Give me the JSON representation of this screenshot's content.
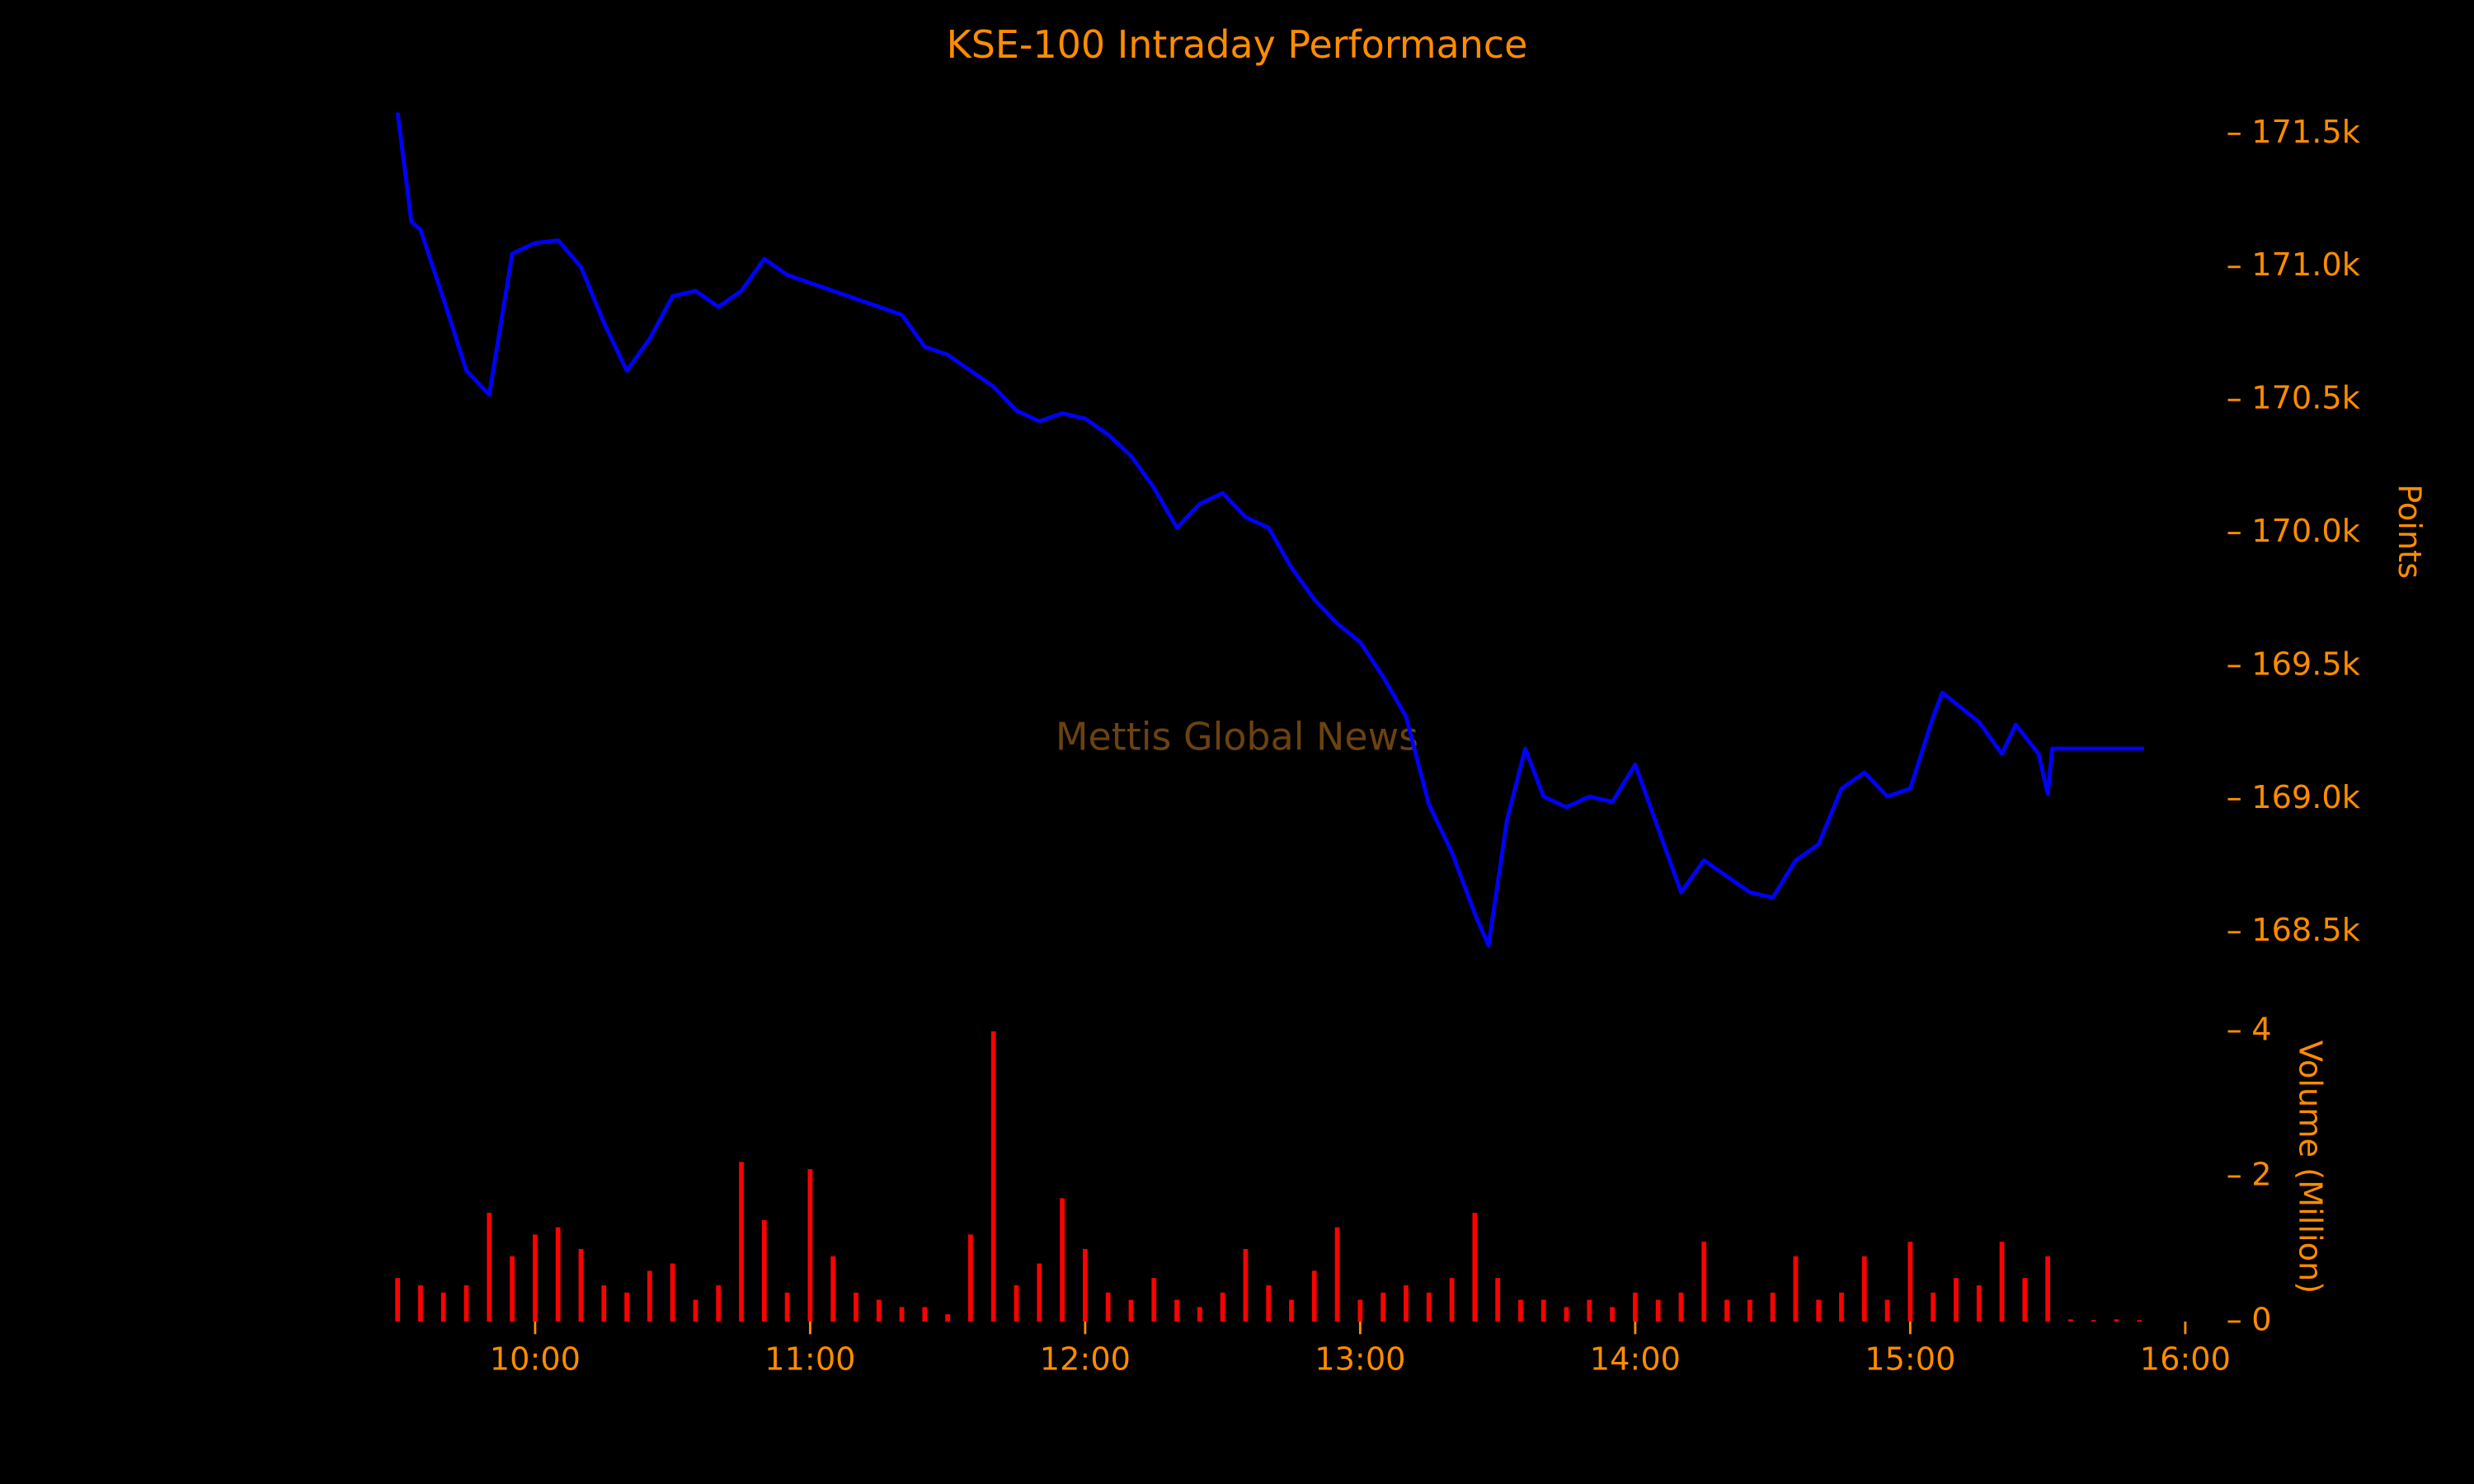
{
  "chart_data": [
    {
      "type": "line",
      "title": "KSE-100 Intraday Performance",
      "annotation": "Mettis Global News",
      "y_label": "Points",
      "color": "#0000ff",
      "x": [
        "09:30",
        "09:33",
        "09:35",
        "09:40",
        "09:45",
        "09:50",
        "09:55",
        "10:00",
        "10:05",
        "10:10",
        "10:15",
        "10:20",
        "10:25",
        "10:30",
        "10:35",
        "10:40",
        "10:45",
        "10:50",
        "10:55",
        "11:00",
        "11:05",
        "11:10",
        "11:15",
        "11:20",
        "11:25",
        "11:30",
        "11:35",
        "11:40",
        "11:45",
        "11:50",
        "11:55",
        "12:00",
        "12:05",
        "12:10",
        "12:15",
        "12:20",
        "12:25",
        "12:30",
        "12:35",
        "12:40",
        "12:45",
        "12:50",
        "12:55",
        "13:00",
        "13:05",
        "13:10",
        "13:15",
        "13:20",
        "13:25",
        "13:28",
        "13:32",
        "13:36",
        "13:40",
        "13:45",
        "13:50",
        "13:55",
        "14:00",
        "14:05",
        "14:10",
        "14:15",
        "14:20",
        "14:25",
        "14:30",
        "14:35",
        "14:40",
        "14:45",
        "14:50",
        "14:55",
        "15:00",
        "15:05",
        "15:07",
        "15:15",
        "15:20",
        "15:23",
        "15:28",
        "15:30",
        "15:31",
        "15:51"
      ],
      "values": [
        171580,
        171170,
        171140,
        170880,
        170610,
        170520,
        171050,
        171090,
        171100,
        171000,
        170790,
        170610,
        170730,
        170890,
        170910,
        170850,
        170910,
        171030,
        170970,
        170940,
        170910,
        170880,
        170850,
        170820,
        170700,
        170670,
        170610,
        170550,
        170460,
        170420,
        170450,
        170430,
        170370,
        170290,
        170170,
        170020,
        170110,
        170150,
        170060,
        170020,
        169870,
        169750,
        169660,
        169590,
        169460,
        169310,
        168980,
        168800,
        168570,
        168450,
        168920,
        169190,
        169010,
        168970,
        169010,
        168990,
        169130,
        168890,
        168650,
        168770,
        168710,
        168650,
        168630,
        168770,
        168830,
        169040,
        169100,
        169010,
        169040,
        169310,
        169400,
        169290,
        169170,
        169280,
        169170,
        169020,
        169190,
        169190
      ],
      "xlim": [
        "09:30",
        "16:00"
      ],
      "ylim": [
        168400,
        171600
      ],
      "yticks": [
        {
          "value": 168500,
          "label": "168.5k"
        },
        {
          "value": 169000,
          "label": "169.0k"
        },
        {
          "value": 169500,
          "label": "169.5k"
        },
        {
          "value": 170000,
          "label": "170.0k"
        },
        {
          "value": 170500,
          "label": "170.5k"
        },
        {
          "value": 171000,
          "label": "171.0k"
        },
        {
          "value": 171500,
          "label": "171.5k"
        }
      ]
    },
    {
      "type": "bar",
      "y_label": "Volume (Million)",
      "color": "#ff0000",
      "x": [
        "09:30",
        "09:35",
        "09:40",
        "09:45",
        "09:50",
        "09:55",
        "10:00",
        "10:05",
        "10:10",
        "10:15",
        "10:20",
        "10:25",
        "10:30",
        "10:35",
        "10:40",
        "10:45",
        "10:50",
        "10:55",
        "11:00",
        "11:05",
        "11:10",
        "11:15",
        "11:20",
        "11:25",
        "11:30",
        "11:35",
        "11:40",
        "11:45",
        "11:50",
        "11:55",
        "12:00",
        "12:05",
        "12:10",
        "12:15",
        "12:20",
        "12:25",
        "12:30",
        "12:35",
        "12:40",
        "12:45",
        "12:50",
        "12:55",
        "13:00",
        "13:05",
        "13:10",
        "13:15",
        "13:20",
        "13:25",
        "13:30",
        "13:35",
        "13:40",
        "13:45",
        "13:50",
        "13:55",
        "14:00",
        "14:05",
        "14:10",
        "14:15",
        "14:20",
        "14:25",
        "14:30",
        "14:35",
        "14:40",
        "14:45",
        "14:50",
        "14:55",
        "15:00",
        "15:05",
        "15:10",
        "15:15",
        "15:20",
        "15:25",
        "15:30",
        "15:35",
        "15:40",
        "15:45",
        "15:50"
      ],
      "values": [
        0.6,
        0.5,
        0.4,
        0.5,
        1.5,
        0.9,
        1.2,
        1.3,
        1.0,
        0.5,
        0.4,
        0.7,
        0.8,
        0.3,
        0.5,
        2.2,
        1.4,
        0.4,
        2.1,
        0.9,
        0.4,
        0.3,
        0.2,
        0.2,
        0.1,
        1.2,
        4.0,
        0.5,
        0.8,
        1.7,
        1.0,
        0.4,
        0.3,
        0.6,
        0.3,
        0.2,
        0.4,
        1.0,
        0.5,
        0.3,
        0.7,
        1.3,
        0.3,
        0.4,
        0.5,
        0.4,
        0.6,
        1.5,
        0.6,
        0.3,
        0.3,
        0.2,
        0.3,
        0.2,
        0.4,
        0.3,
        0.4,
        1.1,
        0.3,
        0.3,
        0.4,
        0.9,
        0.3,
        0.4,
        0.9,
        0.3,
        1.1,
        0.4,
        0.6,
        0.5,
        1.1,
        0.6,
        0.9,
        0.03,
        0.02,
        0.03,
        0.02
      ],
      "xlim": [
        "09:30",
        "16:00"
      ],
      "xticks": [
        "10:00",
        "11:00",
        "12:00",
        "13:00",
        "14:00",
        "15:00",
        "16:00"
      ],
      "ylim": [
        0,
        4
      ],
      "yticks": [
        0,
        2,
        4
      ]
    }
  ]
}
